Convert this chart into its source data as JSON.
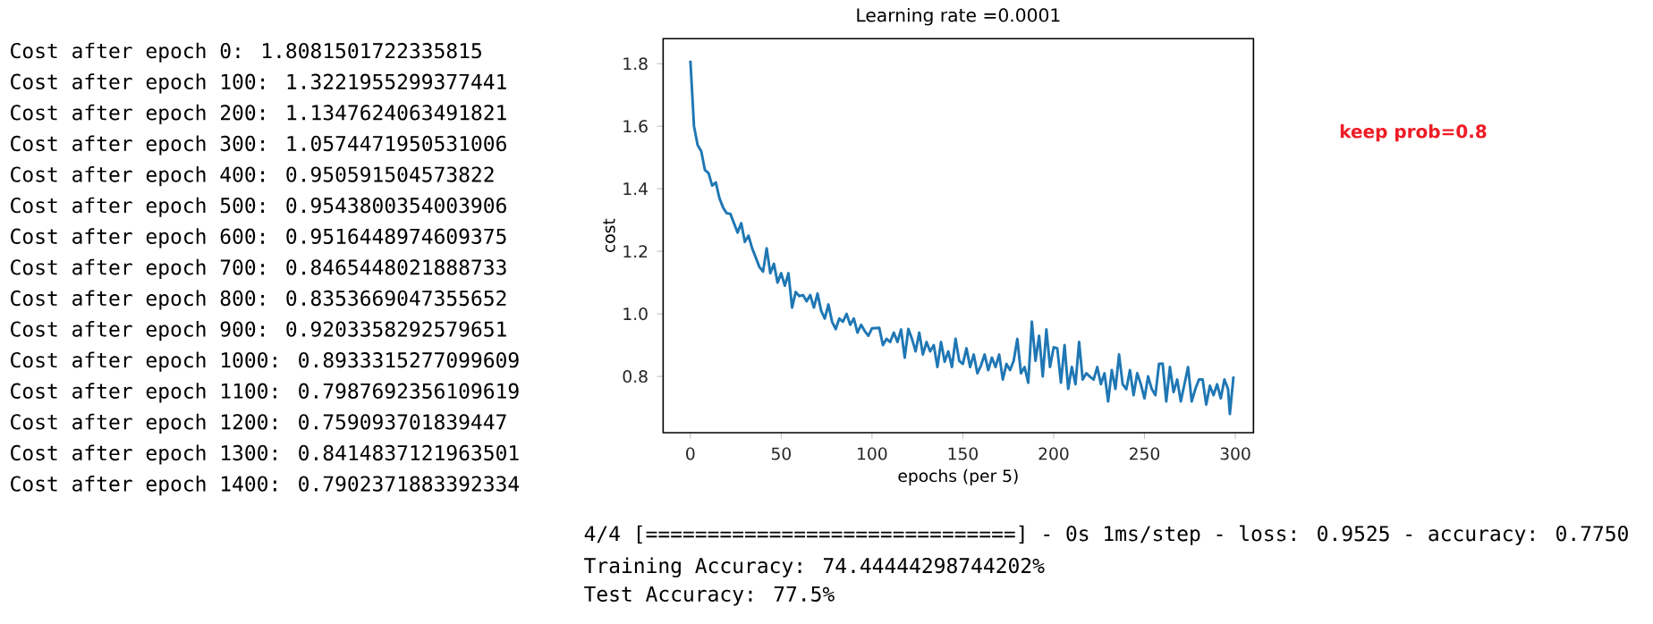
{
  "chart_data": {
    "type": "line",
    "title": "Learning rate =0.0001",
    "xlabel": "epochs (per 5)",
    "ylabel": "cost",
    "x": [
      0,
      2,
      4,
      6,
      8,
      10,
      12,
      14,
      16,
      18,
      20,
      22,
      24,
      26,
      28,
      30,
      32,
      34,
      36,
      38,
      40,
      42,
      44,
      46,
      48,
      50,
      52,
      54,
      56,
      58,
      60,
      62,
      64,
      66,
      68,
      70,
      72,
      74,
      76,
      78,
      80,
      82,
      84,
      86,
      88,
      90,
      92,
      94,
      96,
      98,
      100,
      104,
      106,
      108,
      110,
      112,
      114,
      116,
      118,
      120,
      122,
      124,
      126,
      128,
      130,
      132,
      134,
      136,
      138,
      140,
      142,
      144,
      146,
      148,
      150,
      152,
      154,
      156,
      158,
      160,
      162,
      164,
      166,
      168,
      170,
      172,
      174,
      176,
      178,
      180,
      182,
      184,
      186,
      188,
      190,
      192,
      194,
      196,
      198,
      200,
      202,
      204,
      206,
      208,
      210,
      212,
      214,
      216,
      218,
      220,
      222,
      224,
      226,
      228,
      230,
      232,
      234,
      236,
      238,
      240,
      242,
      244,
      246,
      248,
      250,
      252,
      254,
      256,
      258,
      260,
      262,
      264,
      266,
      268,
      270,
      272,
      274,
      276,
      278,
      280,
      282,
      284,
      286,
      288,
      290,
      292,
      294,
      296,
      297,
      299
    ],
    "series": [
      {
        "color": "#1f77b4",
        "values": [
          1.81,
          1.6,
          1.54,
          1.52,
          1.46,
          1.45,
          1.41,
          1.42,
          1.37,
          1.34,
          1.322,
          1.32,
          1.29,
          1.26,
          1.29,
          1.23,
          1.25,
          1.21,
          1.18,
          1.15,
          1.135,
          1.21,
          1.13,
          1.16,
          1.1,
          1.13,
          1.09,
          1.13,
          1.02,
          1.07,
          1.057,
          1.06,
          1.04,
          1.06,
          1.02,
          1.065,
          1.01,
          0.985,
          1.03,
          0.975,
          0.951,
          0.985,
          0.975,
          1.0,
          0.965,
          0.985,
          0.94,
          0.965,
          0.945,
          0.93,
          0.954,
          0.955,
          0.9,
          0.92,
          0.91,
          0.94,
          0.91,
          0.95,
          0.86,
          0.952,
          0.92,
          0.88,
          0.94,
          0.87,
          0.91,
          0.88,
          0.9,
          0.83,
          0.91,
          0.847,
          0.88,
          0.83,
          0.92,
          0.85,
          0.84,
          0.89,
          0.83,
          0.87,
          0.81,
          0.835,
          0.87,
          0.82,
          0.86,
          0.83,
          0.87,
          0.79,
          0.84,
          0.82,
          0.85,
          0.92,
          0.81,
          0.83,
          0.78,
          0.975,
          0.85,
          0.93,
          0.8,
          0.95,
          0.83,
          0.893,
          0.89,
          0.78,
          0.9,
          0.76,
          0.83,
          0.775,
          0.91,
          0.79,
          0.81,
          0.799,
          0.79,
          0.83,
          0.775,
          0.81,
          0.72,
          0.82,
          0.76,
          0.87,
          0.775,
          0.759,
          0.82,
          0.74,
          0.81,
          0.775,
          0.73,
          0.8,
          0.76,
          0.74,
          0.84,
          0.841,
          0.72,
          0.83,
          0.75,
          0.79,
          0.72,
          0.775,
          0.83,
          0.72,
          0.76,
          0.79,
          0.79,
          0.71,
          0.77,
          0.74,
          0.775,
          0.73,
          0.79,
          0.76,
          0.68,
          0.8
        ]
      }
    ],
    "xlim": [
      -15,
      310
    ],
    "ylim": [
      0.62,
      1.88
    ],
    "xticks": [
      0,
      50,
      100,
      150,
      200,
      250,
      300
    ],
    "yticks": [
      0.8,
      {
        "value": 1.0,
        "label": "1.0"
      },
      1.2,
      1.4,
      1.6,
      1.8
    ],
    "grid": false,
    "marker": "none",
    "line_style": "solid",
    "annotations": [
      "Cost after epoch 0: 1.8081501722335815",
      "Cost after epoch 100: 1.3221955299377441",
      "Cost after epoch 200: 1.1347624063491821",
      "Cost after epoch 300: 1.0574471950531006",
      "Cost after epoch 400: 0.950591504573822",
      "Cost after epoch 500: 0.9543800354003906",
      "Cost after epoch 600: 0.9516448974609375",
      "Cost after epoch 700: 0.8465448021888733",
      "Cost after epoch 800: 0.8353669047355652",
      "Cost after epoch 900: 0.9203358292579651",
      "Cost after epoch 1000: 0.8933315277099609",
      "Cost after epoch 1100: 0.7987692356109619",
      "Cost after epoch 1200: 0.759093701839447",
      "Cost after epoch 1300: 0.8414837121963501",
      "Cost after epoch 1400: 0.7902371883392334",
      "4/4 [==============================] - 0s 1ms/step - loss: 0.9525 - accuracy: 0.7750",
      "Training Accuracy: 74.44444298744202%",
      "Test Accuracy: 77.5%",
      "keep prob=0.8"
    ]
  }
}
